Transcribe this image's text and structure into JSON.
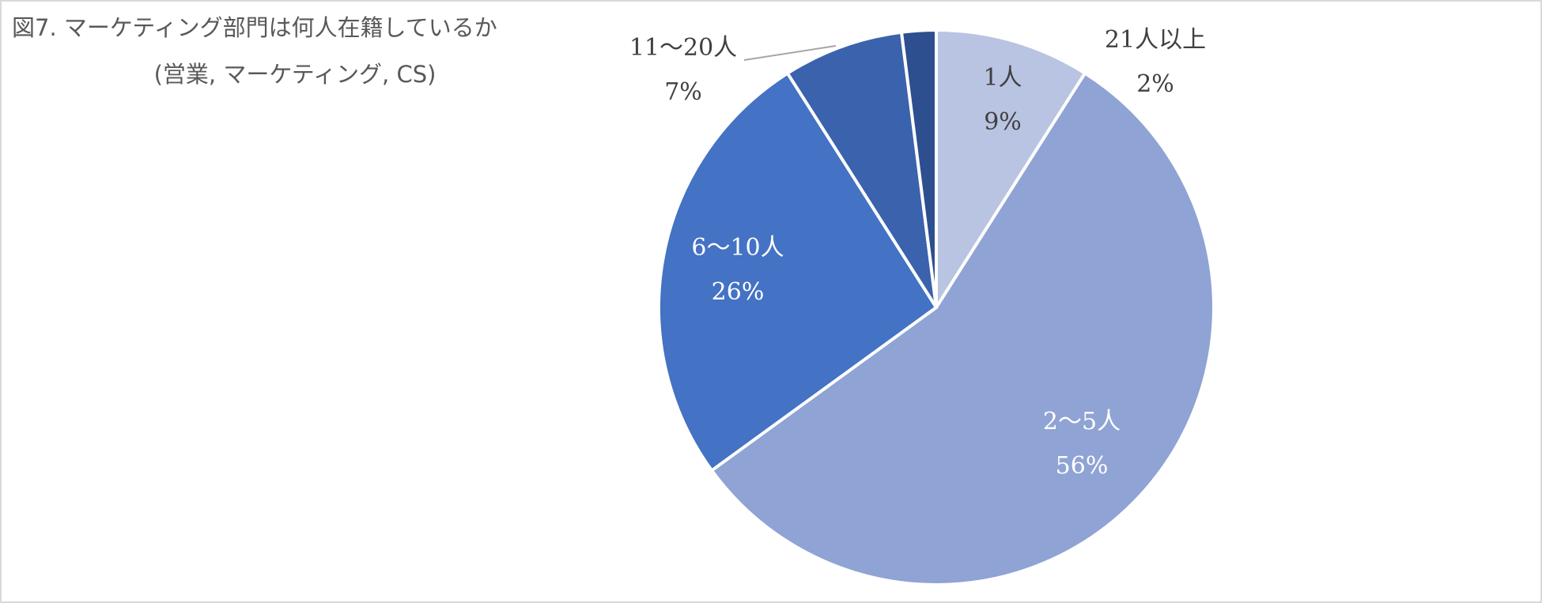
{
  "chart_data": {
    "type": "pie",
    "title": "図7. マーケティング部門は何人在籍しているか",
    "subtitle": "(営業, マーケティング, CS)",
    "categories": [
      "1人",
      "2〜5人",
      "6〜10人",
      "11〜20人",
      "21人以上"
    ],
    "values": [
      9,
      56,
      26,
      7,
      2
    ],
    "value_labels": [
      "9%",
      "56%",
      "26%",
      "7%",
      "2%"
    ],
    "colors": [
      "#b9c3e2",
      "#8fa3d4",
      "#4472c4",
      "#3a62ad",
      "#2e4f8f"
    ]
  }
}
